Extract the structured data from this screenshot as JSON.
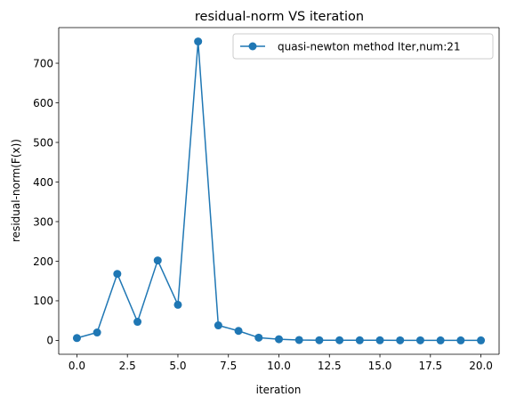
{
  "chart_data": {
    "type": "line",
    "title": "residual-norm VS iteration",
    "xlabel": "iteration",
    "ylabel": "residual-norm(F(x))",
    "xlim": [
      -0.9,
      20.9
    ],
    "ylim": [
      -35,
      790
    ],
    "xticks": [
      0.0,
      2.5,
      5.0,
      7.5,
      10.0,
      12.5,
      15.0,
      17.5,
      20.0
    ],
    "xtick_labels": [
      "0.0",
      "2.5",
      "5.0",
      "7.5",
      "10.0",
      "12.5",
      "15.0",
      "17.5",
      "20.0"
    ],
    "yticks": [
      0,
      100,
      200,
      300,
      400,
      500,
      600,
      700
    ],
    "ytick_labels": [
      "0",
      "100",
      "200",
      "300",
      "400",
      "500",
      "600",
      "700"
    ],
    "grid": false,
    "legend_position": "top-right",
    "series": [
      {
        "name": "quasi-newton method Iter,num:21",
        "color": "#1f77b4",
        "marker": "circle",
        "x": [
          0,
          1,
          2,
          3,
          4,
          5,
          6,
          7,
          8,
          9,
          10,
          11,
          12,
          13,
          14,
          15,
          16,
          17,
          18,
          19,
          20
        ],
        "y": [
          6,
          20,
          168,
          47,
          202,
          90,
          755,
          38,
          24,
          7,
          3,
          1,
          0.5,
          0.4,
          0.3,
          0.3,
          0.2,
          0.2,
          0.1,
          0.1,
          0.1
        ]
      }
    ]
  }
}
